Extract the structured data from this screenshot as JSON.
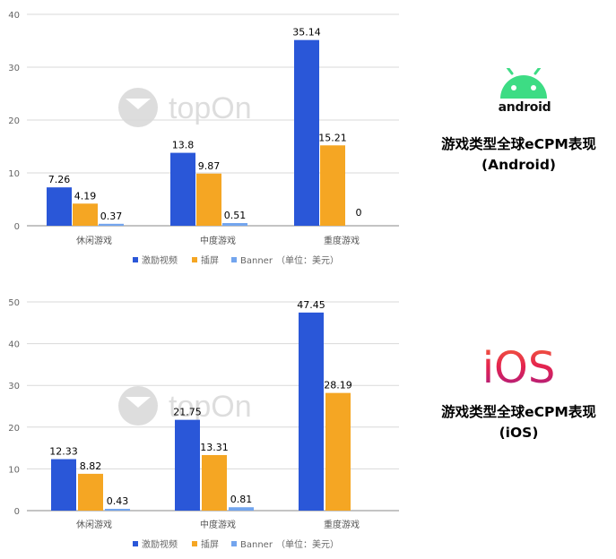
{
  "charts": [
    {
      "type": "bar",
      "categories": [
        "休闲游戏",
        "中度游戏",
        "重度游戏"
      ],
      "series": [
        {
          "name": "激励视频",
          "values": [
            7.26,
            13.8,
            35.14
          ],
          "labels": [
            "7.26",
            "13.8",
            "35.14"
          ]
        },
        {
          "name": "插屏",
          "values": [
            4.19,
            9.87,
            15.21
          ],
          "labels": [
            "4.19",
            "9.87",
            "15.21"
          ]
        },
        {
          "name": "Banner",
          "values": [
            0.37,
            0.51,
            0
          ],
          "labels": [
            "0.37",
            "0.51",
            "0"
          ]
        }
      ],
      "ylim": [
        0,
        40
      ],
      "yticks": [
        0,
        10,
        20,
        30,
        40
      ],
      "unit_note": "（单位：美元）",
      "watermark": "topOn"
    },
    {
      "type": "bar",
      "categories": [
        "休闲游戏",
        "中度游戏",
        "重度游戏"
      ],
      "series": [
        {
          "name": "激励视频",
          "values": [
            12.33,
            21.75,
            47.45
          ],
          "labels": [
            "12.33",
            "21.75",
            "47.45"
          ]
        },
        {
          "name": "插屏",
          "values": [
            8.82,
            13.31,
            28.19
          ],
          "labels": [
            "8.82",
            "13.31",
            "28.19"
          ]
        },
        {
          "name": "Banner",
          "values": [
            0.43,
            0.81,
            0
          ],
          "labels": [
            "0.43",
            "0.81",
            ""
          ]
        }
      ],
      "ylim": [
        0,
        50
      ],
      "yticks": [
        0,
        10,
        20,
        30,
        40,
        50
      ],
      "unit_note": "（单位：美元）",
      "watermark": "topOn"
    }
  ],
  "colors": {
    "series": [
      "#2a57d8",
      "#f5a623",
      "#73a5ee"
    ],
    "grid": "#d9d9d9",
    "axis": "#888888"
  },
  "android": {
    "logo_text": "android",
    "caption_line1": "游戏类型全球eCPM表现",
    "caption_line2": "(Android)"
  },
  "ios": {
    "logo_text": "iOS",
    "caption_line1": "游戏类型全球eCPM表现",
    "caption_line2": "(iOS)"
  }
}
